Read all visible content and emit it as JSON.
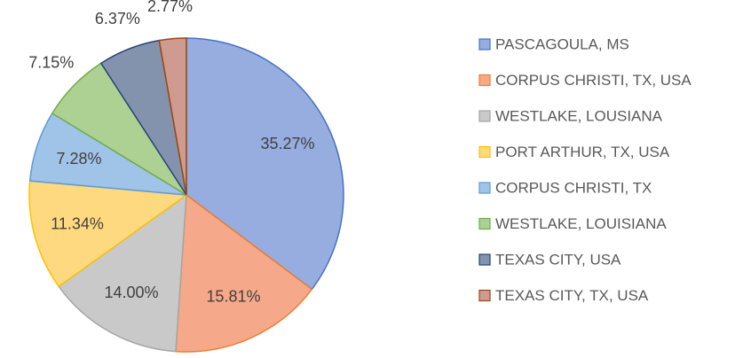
{
  "chart_data": {
    "type": "pie",
    "categories": [
      "PASCAGOULA, MS",
      "CORPUS CHRISTI, TX, USA",
      "WESTLAKE, LOUSIANA",
      "PORT ARTHUR, TX, USA",
      "CORPUS CHRISTI, TX",
      "WESTLAKE, LOUISIANA",
      "TEXAS CITY, USA",
      "TEXAS CITY, TX, USA"
    ],
    "values": [
      35.27,
      15.81,
      14.0,
      11.34,
      7.28,
      7.15,
      6.37,
      2.77
    ],
    "value_labels": [
      "35.27%",
      "15.81%",
      "14.00%",
      "11.34%",
      "7.28%",
      "7.15%",
      "6.37%",
      "2.77%"
    ],
    "colors": [
      "#97ade0",
      "#f6a98a",
      "#c9c9c9",
      "#ffd97f",
      "#a0c4e8",
      "#acd192",
      "#8493ad",
      "#cf9a90"
    ],
    "edge_colors": [
      "#4472c4",
      "#ed7d31",
      "#a5a5a5",
      "#ffc000",
      "#5b9bd5",
      "#70ad47",
      "#264478",
      "#9e480e"
    ],
    "legend": "right"
  }
}
